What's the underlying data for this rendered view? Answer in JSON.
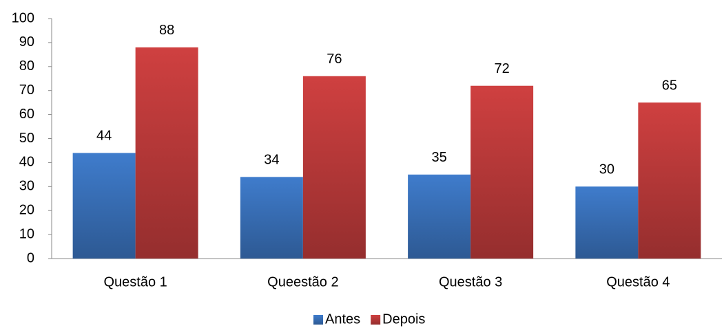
{
  "chart_data": {
    "type": "bar",
    "categories": [
      "Questão 1",
      "Queestão 2",
      "Questão 3",
      "Questão 4"
    ],
    "series": [
      {
        "name": "Antes",
        "color": "#3f7ccc",
        "values": [
          44,
          34,
          35,
          30
        ]
      },
      {
        "name": "Depois",
        "color": "#cf4040",
        "values": [
          88,
          76,
          72,
          65
        ]
      }
    ],
    "ylim": [
      0,
      100
    ],
    "yticks": [
      0,
      10,
      20,
      30,
      40,
      50,
      60,
      70,
      80,
      90,
      100
    ],
    "grid": false,
    "legend": "bottom",
    "data_labels": true
  }
}
